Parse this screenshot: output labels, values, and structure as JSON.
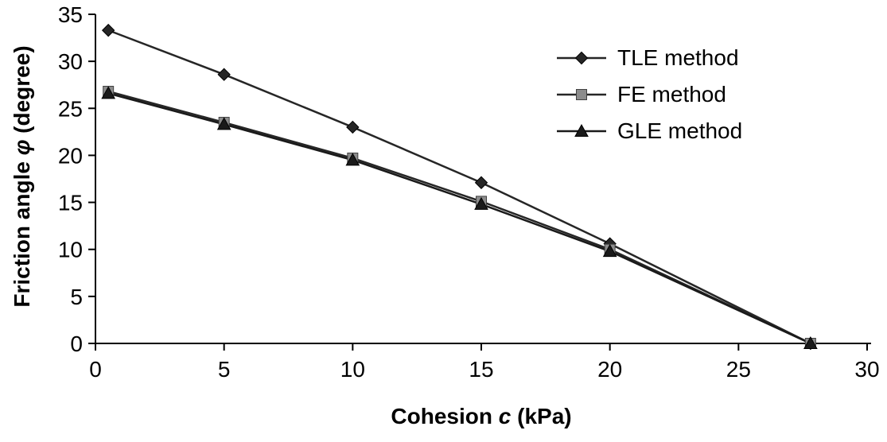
{
  "chart_data": {
    "type": "line",
    "title": "",
    "xlabel": "Cohesion c (kPa)",
    "xlabel_parts": {
      "prefix": "Cohesion ",
      "symbol": "c",
      "suffix": " (kPa)"
    },
    "ylabel": "Friction angle φ (degree)",
    "ylabel_parts": {
      "prefix": "Friction angle ",
      "symbol": "φ",
      "suffix": " (degree)"
    },
    "xlim": [
      0,
      30
    ],
    "ylim": [
      0,
      35
    ],
    "xticks": [
      0,
      5,
      10,
      15,
      20,
      25,
      30
    ],
    "yticks": [
      0,
      5,
      10,
      15,
      20,
      25,
      30,
      35
    ],
    "grid": false,
    "legend_position": "upper-right",
    "axis_color": "#000000",
    "background_color": "#ffffff",
    "series": [
      {
        "name": "TLE method",
        "marker": "diamond",
        "line_color": "#262626",
        "marker_color": "#262626",
        "marker_edge": "#000000",
        "x": [
          0.5,
          5,
          10,
          15,
          20,
          27.8
        ],
        "y": [
          33.3,
          28.6,
          23.0,
          17.1,
          10.6,
          0
        ]
      },
      {
        "name": "FE method",
        "marker": "square",
        "line_color": "#262626",
        "marker_color": "#8c8c8c",
        "marker_edge": "#404040",
        "x": [
          0.5,
          5,
          10,
          15,
          20,
          27.8
        ],
        "y": [
          26.8,
          23.5,
          19.7,
          15.1,
          10.0,
          0
        ]
      },
      {
        "name": "GLE method",
        "marker": "triangle",
        "line_color": "#1a1a1a",
        "marker_color": "#1a1a1a",
        "marker_edge": "#000000",
        "x": [
          0.5,
          5,
          10,
          15,
          20,
          27.8
        ],
        "y": [
          26.6,
          23.3,
          19.5,
          14.8,
          9.8,
          0
        ]
      }
    ]
  }
}
